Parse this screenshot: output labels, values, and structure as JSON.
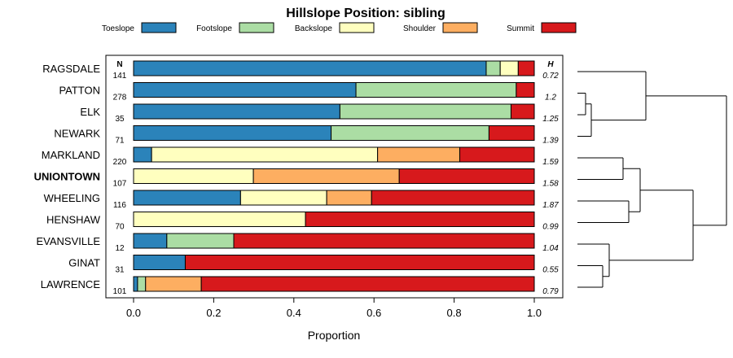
{
  "chart_data": {
    "type": "bar",
    "stacked": true,
    "orientation": "horizontal",
    "title": "Hillslope Position: sibling",
    "xlabel": "Proportion",
    "xlim": [
      0,
      1
    ],
    "x_ticks": [
      "0.0",
      "0.2",
      "0.4",
      "0.6",
      "0.8",
      "1.0"
    ],
    "x_tick_values": [
      0,
      0.2,
      0.4,
      0.6,
      0.8,
      1.0
    ],
    "legend_position": "top",
    "n_header": "N",
    "h_header": "H",
    "series": [
      {
        "name": "Toeslope",
        "color": "#2b83ba"
      },
      {
        "name": "Footslope",
        "color": "#abdda4"
      },
      {
        "name": "Backslope",
        "color": "#ffffbf"
      },
      {
        "name": "Shoulder",
        "color": "#fdae61"
      },
      {
        "name": "Summit",
        "color": "#d7191c"
      }
    ],
    "rows": [
      {
        "name": "RAGSDALE",
        "bold": false,
        "n": "141",
        "h": "0.72",
        "values": [
          0.88,
          0.035,
          0.045,
          0.0,
          0.04
        ]
      },
      {
        "name": "PATTON",
        "bold": false,
        "n": "278",
        "h": "1.2",
        "values": [
          0.555,
          0.4,
          0.0,
          0.0,
          0.045
        ]
      },
      {
        "name": "ELK",
        "bold": false,
        "n": "35",
        "h": "1.25",
        "values": [
          0.515,
          0.427,
          0.0,
          0.0,
          0.058
        ]
      },
      {
        "name": "NEWARK",
        "bold": false,
        "n": "71",
        "h": "1.39",
        "values": [
          0.493,
          0.394,
          0.0,
          0.0,
          0.113
        ]
      },
      {
        "name": "MARKLAND",
        "bold": false,
        "n": "220",
        "h": "1.59",
        "values": [
          0.045,
          0.0,
          0.564,
          0.205,
          0.186
        ]
      },
      {
        "name": "UNIONTOWN",
        "bold": true,
        "n": "107",
        "h": "1.58",
        "values": [
          0.0,
          0.0,
          0.299,
          0.364,
          0.337
        ]
      },
      {
        "name": "WHEELING",
        "bold": false,
        "n": "116",
        "h": "1.87",
        "values": [
          0.267,
          0.0,
          0.215,
          0.112,
          0.406
        ]
      },
      {
        "name": "HENSHAW",
        "bold": false,
        "n": "70",
        "h": "0.99",
        "values": [
          0.0,
          0.0,
          0.429,
          0.0,
          0.571
        ]
      },
      {
        "name": "EVANSVILLE",
        "bold": false,
        "n": "12",
        "h": "1.04",
        "values": [
          0.083,
          0.167,
          0.0,
          0.0,
          0.75
        ]
      },
      {
        "name": "GINAT",
        "bold": false,
        "n": "31",
        "h": "0.55",
        "values": [
          0.129,
          0.0,
          0.0,
          0.0,
          0.871
        ]
      },
      {
        "name": "LAWRENCE",
        "bold": false,
        "n": "101",
        "h": "0.79",
        "values": [
          0.01,
          0.02,
          0.0,
          0.139,
          0.831
        ]
      }
    ],
    "dendrogram": true
  }
}
